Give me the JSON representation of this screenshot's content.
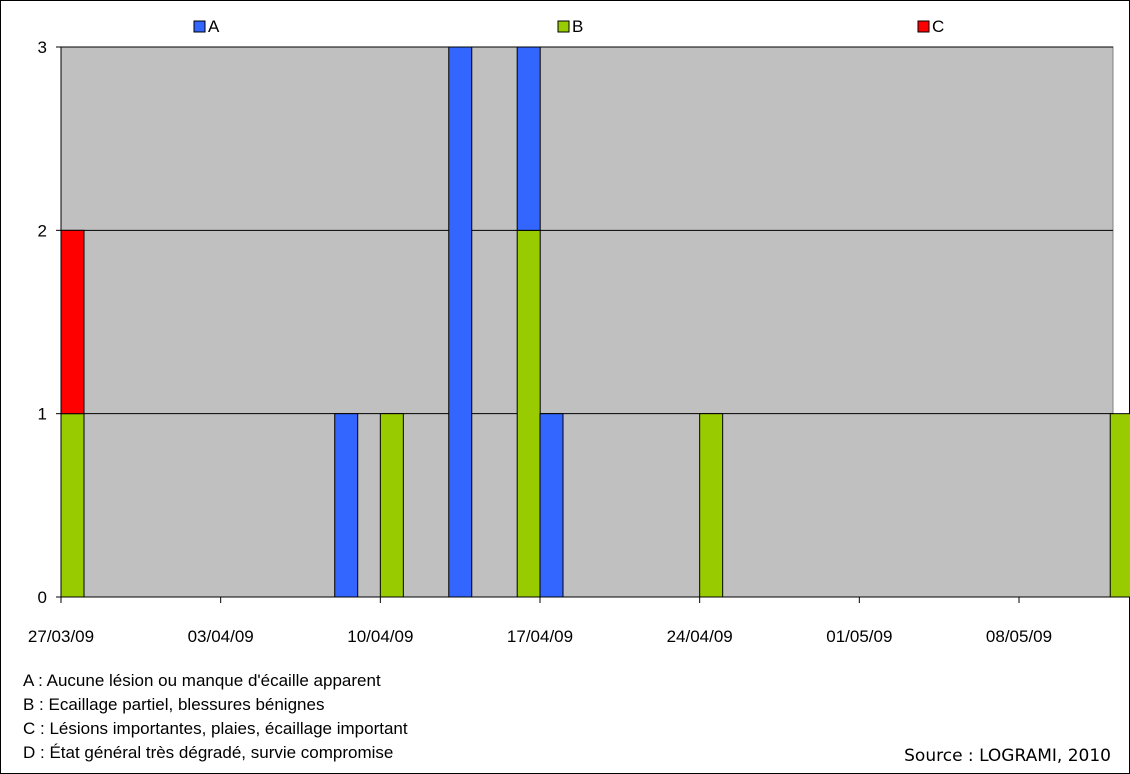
{
  "chart_data": {
    "type": "bar",
    "stacked": true,
    "x_type": "date",
    "x_ticks": [
      "27/03/09",
      "03/04/09",
      "10/04/09",
      "17/04/09",
      "24/04/09",
      "01/05/09",
      "08/05/09"
    ],
    "x_tick_dates": [
      "2009-03-27",
      "2009-04-03",
      "2009-04-10",
      "2009-04-17",
      "2009-04-24",
      "2009-05-01",
      "2009-05-08"
    ],
    "ylim": [
      0,
      3
    ],
    "y_ticks": [
      "0",
      "1",
      "2",
      "3"
    ],
    "grid": true,
    "legend_position": "top",
    "plot_background": "#c0c0c0",
    "series": [
      {
        "name": "A",
        "color": "#3366ff",
        "points": [
          {
            "date": "2009-04-08",
            "value": 1
          },
          {
            "date": "2009-04-13",
            "value": 3
          },
          {
            "date": "2009-04-16",
            "value": 1
          },
          {
            "date": "2009-04-17",
            "value": 1
          }
        ]
      },
      {
        "name": "B",
        "color": "#99cc00",
        "points": [
          {
            "date": "2009-03-27",
            "value": 1
          },
          {
            "date": "2009-04-10",
            "value": 1
          },
          {
            "date": "2009-04-16",
            "value": 2
          },
          {
            "date": "2009-04-24",
            "value": 1
          },
          {
            "date": "2009-05-12",
            "value": 1
          }
        ]
      },
      {
        "name": "C",
        "color": "#ff0000",
        "points": [
          {
            "date": "2009-03-27",
            "value": 1
          }
        ]
      }
    ]
  },
  "notes": [
    "A : Aucune lésion ou manque d'écaille apparent",
    "B : Ecaillage partiel, blessures bénignes",
    "C : Lésions importantes, plaies, écaillage important",
    "D : État général très dégradé, survie compromise"
  ],
  "source": "Source : LOGRAMI, 2010"
}
